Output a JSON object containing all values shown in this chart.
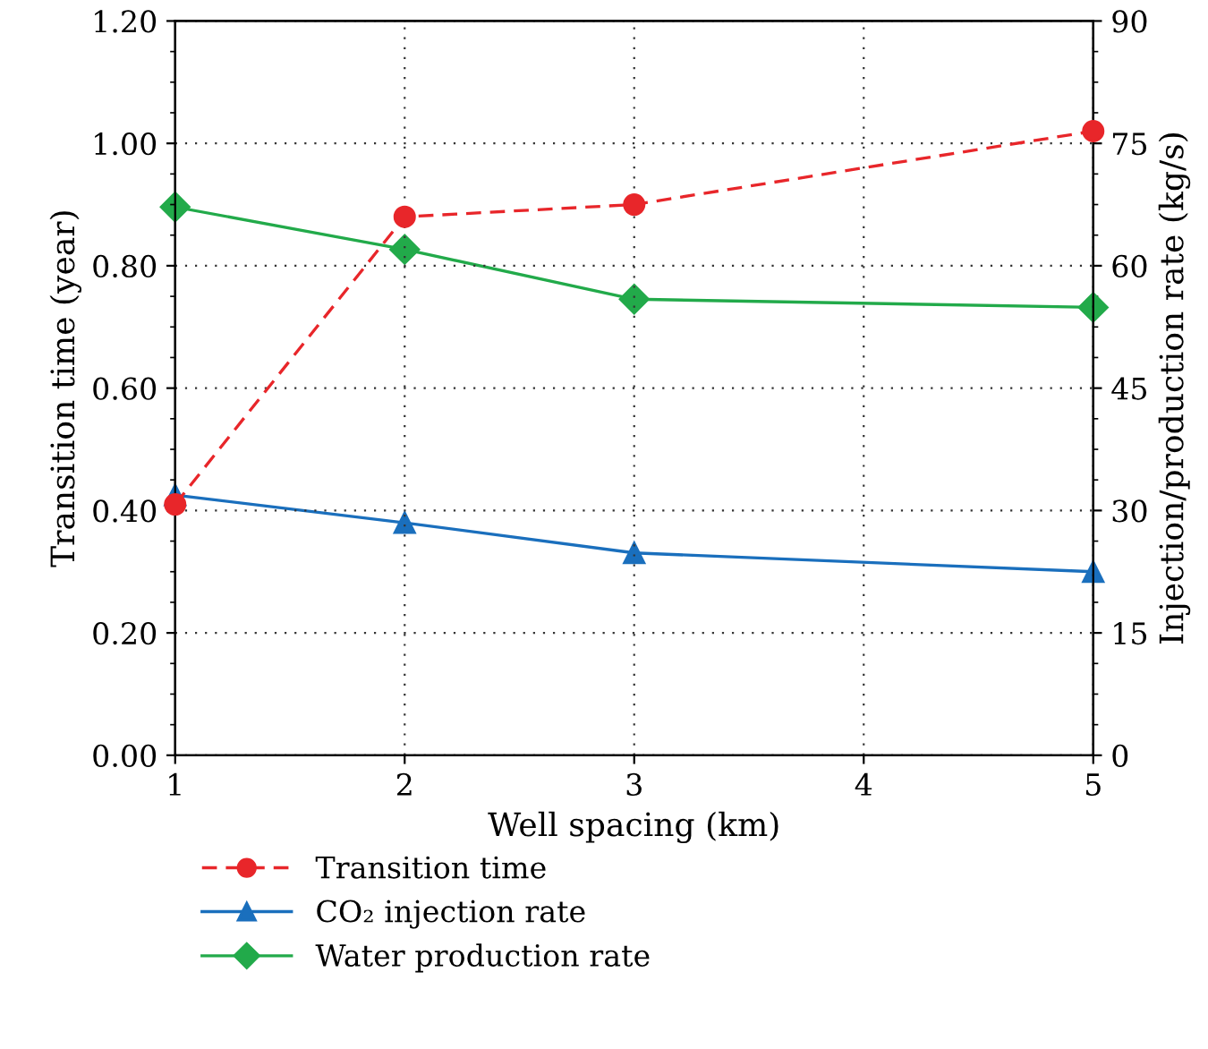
{
  "chart_data": {
    "type": "line",
    "xlabel": "Well spacing (km)",
    "ylabel": "Transition time (year)",
    "y2label": "Injection/production rate (kg/s)",
    "x": [
      1,
      2,
      3,
      4,
      5
    ],
    "series": [
      {
        "name": "Transition time",
        "color": "#e8262a",
        "values": [
          0.41,
          0.88,
          0.9,
          null,
          1.02
        ],
        "marker": "circle",
        "line_style": "dashed"
      },
      {
        "name": "CO₂ injection rate",
        "color": "#1a6fbd",
        "values": [
          31.9,
          28.5,
          24.8,
          null,
          22.5
        ],
        "marker": "triangle",
        "line_style": "solid",
        "axis": "y2"
      },
      {
        "name": "Water production rate",
        "color": "#22aa4a",
        "values": [
          67.2,
          62.0,
          55.9,
          null,
          54.9
        ],
        "marker": "diamond",
        "line_style": "solid",
        "axis": "y2"
      }
    ],
    "xlim": [
      1,
      5
    ],
    "xticks": [
      1,
      2,
      3,
      4,
      5
    ],
    "ylim": [
      0,
      1.2
    ],
    "yticks": [
      {
        "value": 0,
        "label": "0.00"
      },
      {
        "value": 0.2,
        "label": "0.20"
      },
      {
        "value": 0.4,
        "label": "0.40"
      },
      {
        "value": 0.6,
        "label": "0.60"
      },
      {
        "value": 0.8,
        "label": "0.80"
      },
      {
        "value": 1.0,
        "label": "1.00"
      },
      {
        "value": 1.2,
        "label": "1.20"
      }
    ],
    "y2lim": [
      0,
      90
    ],
    "y2ticks": [
      0,
      15,
      30,
      45,
      60,
      75,
      90
    ],
    "grid": true,
    "legend": "bottom left"
  }
}
